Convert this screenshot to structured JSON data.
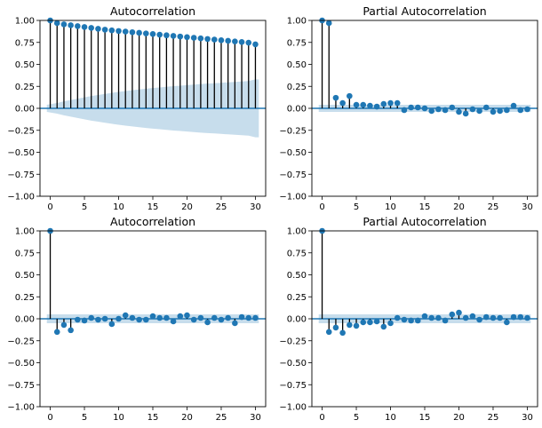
{
  "chart_data": [
    {
      "type": "stem",
      "title": "Autocorrelation",
      "xlim": [
        -1.5,
        31.5
      ],
      "ylim": [
        -1,
        1
      ],
      "xticks": [
        "0",
        "5",
        "10",
        "15",
        "20",
        "25",
        "30"
      ],
      "yticks": [
        "1.00",
        "0.75",
        "0.50",
        "0.25",
        "0.00",
        "−0.25",
        "−0.50",
        "−0.75",
        "−1.00"
      ],
      "lags": [
        0,
        1,
        2,
        3,
        4,
        5,
        6,
        7,
        8,
        9,
        10,
        11,
        12,
        13,
        14,
        15,
        16,
        17,
        18,
        19,
        20,
        21,
        22,
        23,
        24,
        25,
        26,
        27,
        28,
        29,
        30
      ],
      "values": [
        1.0,
        0.97,
        0.955,
        0.945,
        0.935,
        0.925,
        0.915,
        0.905,
        0.895,
        0.887,
        0.88,
        0.873,
        0.866,
        0.859,
        0.852,
        0.845,
        0.838,
        0.831,
        0.824,
        0.817,
        0.81,
        0.803,
        0.796,
        0.789,
        0.782,
        0.775,
        0.768,
        0.761,
        0.754,
        0.747,
        0.728
      ],
      "confidence_band": [
        0.04,
        0.06,
        0.08,
        0.095,
        0.11,
        0.125,
        0.14,
        0.152,
        0.164,
        0.176,
        0.187,
        0.197,
        0.206,
        0.215,
        0.223,
        0.231,
        0.238,
        0.245,
        0.252,
        0.258,
        0.264,
        0.27,
        0.276,
        0.281,
        0.286,
        0.291,
        0.296,
        0.301,
        0.306,
        0.311,
        0.33
      ]
    },
    {
      "type": "stem",
      "title": "Partial Autocorrelation",
      "xlim": [
        -1.5,
        31.5
      ],
      "ylim": [
        -1,
        1
      ],
      "xticks": [
        "0",
        "5",
        "10",
        "15",
        "20",
        "25",
        "30"
      ],
      "yticks": [
        "1.00",
        "0.75",
        "0.50",
        "0.25",
        "0.00",
        "−0.25",
        "−0.50",
        "−0.75",
        "−1.00"
      ],
      "lags": [
        0,
        1,
        2,
        3,
        4,
        5,
        6,
        7,
        8,
        9,
        10,
        11,
        12,
        13,
        14,
        15,
        16,
        17,
        18,
        19,
        20,
        21,
        22,
        23,
        24,
        25,
        26,
        27,
        28,
        29,
        30
      ],
      "values": [
        1.0,
        0.97,
        0.12,
        0.06,
        0.14,
        0.04,
        0.04,
        0.03,
        0.02,
        0.05,
        0.06,
        0.06,
        -0.02,
        0.01,
        0.01,
        0.0,
        -0.03,
        -0.01,
        -0.02,
        0.01,
        -0.04,
        -0.06,
        -0.01,
        -0.03,
        0.01,
        -0.04,
        -0.03,
        -0.02,
        0.03,
        -0.02,
        -0.01
      ],
      "confidence_band": 0.04
    },
    {
      "type": "stem",
      "title": "Autocorrelation",
      "xlim": [
        -1.5,
        31.5
      ],
      "ylim": [
        -1,
        1
      ],
      "xticks": [
        "0",
        "5",
        "10",
        "15",
        "20",
        "25",
        "30"
      ],
      "yticks": [
        "1.00",
        "0.75",
        "0.50",
        "0.25",
        "0.00",
        "−0.25",
        "−0.50",
        "−0.75",
        "−1.00"
      ],
      "lags": [
        0,
        1,
        2,
        3,
        4,
        5,
        6,
        7,
        8,
        9,
        10,
        11,
        12,
        13,
        14,
        15,
        16,
        17,
        18,
        19,
        20,
        21,
        22,
        23,
        24,
        25,
        26,
        27,
        28,
        29,
        30
      ],
      "values": [
        1.0,
        -0.15,
        -0.07,
        -0.13,
        -0.01,
        -0.02,
        0.01,
        -0.01,
        0.0,
        -0.06,
        0.0,
        0.04,
        0.01,
        -0.01,
        -0.01,
        0.03,
        0.01,
        0.01,
        -0.03,
        0.03,
        0.04,
        -0.01,
        0.01,
        -0.04,
        0.01,
        -0.01,
        0.01,
        -0.05,
        0.02,
        0.01,
        0.01
      ],
      "confidence_band": 0.05
    },
    {
      "type": "stem",
      "title": "Partial Autocorrelation",
      "xlim": [
        -1.5,
        31.5
      ],
      "ylim": [
        -1,
        1
      ],
      "xticks": [
        "0",
        "5",
        "10",
        "15",
        "20",
        "25",
        "30"
      ],
      "yticks": [
        "1.00",
        "0.75",
        "0.50",
        "0.25",
        "0.00",
        "−0.25",
        "−0.50",
        "−0.75",
        "−1.00"
      ],
      "lags": [
        0,
        1,
        2,
        3,
        4,
        5,
        6,
        7,
        8,
        9,
        10,
        11,
        12,
        13,
        14,
        15,
        16,
        17,
        18,
        19,
        20,
        21,
        22,
        23,
        24,
        25,
        26,
        27,
        28,
        29,
        30
      ],
      "values": [
        1.0,
        -0.15,
        -0.1,
        -0.16,
        -0.07,
        -0.08,
        -0.04,
        -0.04,
        -0.03,
        -0.09,
        -0.05,
        0.01,
        -0.01,
        -0.02,
        -0.02,
        0.03,
        0.01,
        0.01,
        -0.02,
        0.05,
        0.07,
        0.01,
        0.03,
        -0.01,
        0.02,
        0.01,
        0.01,
        -0.04,
        0.02,
        0.02,
        0.01
      ],
      "confidence_band": 0.05
    }
  ],
  "colors": {
    "marker": "#1f77b4",
    "stem": "#000000",
    "band": "#1f77b4",
    "band_opacity": 0.25,
    "zero_line": "#1f77b4"
  }
}
